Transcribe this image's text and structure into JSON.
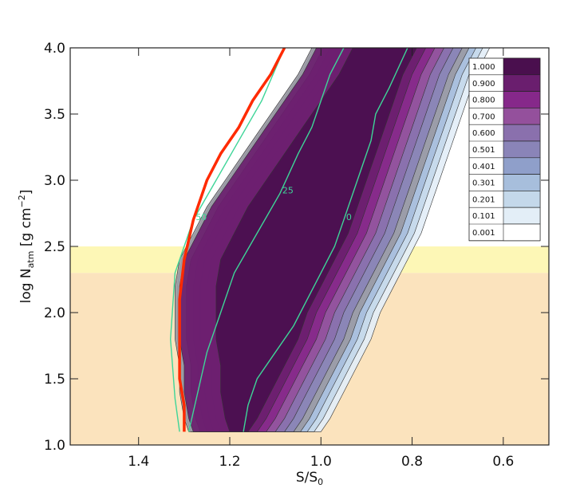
{
  "chart_data": {
    "type": "heatmap",
    "xlabel": "S/S",
    "xlabel_sub": "0",
    "ylabel_main": "log N",
    "ylabel_sub": "atm",
    "ylabel_rest": " [g cm",
    "ylabel_sup": "−2",
    "ylabel_end": "]",
    "xlim": [
      1.55,
      0.5
    ],
    "ylim": [
      1.0,
      4.0
    ],
    "x_ticks": [
      1.4,
      1.2,
      1.0,
      0.8,
      0.6
    ],
    "x_tick_labels": [
      "1.4",
      "1.2",
      "1.0",
      "0.8",
      "0.6"
    ],
    "y_ticks": [
      1.0,
      1.5,
      2.0,
      2.5,
      3.0,
      3.5,
      4.0
    ],
    "y_tick_labels": [
      "1.0",
      "1.5",
      "2.0",
      "2.5",
      "3.0",
      "3.5",
      "4.0"
    ],
    "legend": {
      "placement": "top-right",
      "levels": [
        "1.000",
        "0.900",
        "0.800",
        "0.700",
        "0.600",
        "0.501",
        "0.401",
        "0.301",
        "0.201",
        "0.101",
        "0.001"
      ],
      "colors": [
        "#4a0f4e",
        "#6a1e6e",
        "#86288a",
        "#94509c",
        "#8a70ad",
        "#8a84b8",
        "#8f9fca",
        "#a7bedc",
        "#c4d8ea",
        "#e3eef7",
        "#ffffff"
      ]
    },
    "band_colors": [
      "#4a0f4e",
      "#6a1e6e",
      "#86288a",
      "#94509c",
      "#8a70ad",
      "#8a84b8",
      "#9a9aa4",
      "#a7bedc",
      "#c4d8ea",
      "#e3eef7"
    ],
    "shaded_regions": [
      {
        "y_range": [
          1.0,
          2.3
        ],
        "color": "#fbe3bd"
      },
      {
        "y_range": [
          2.3,
          2.5
        ],
        "color": "#fdf7b6"
      }
    ],
    "region_y_bottom": 1.1,
    "region_y_top": 4.0,
    "left_edges": [
      [
        1.3,
        1.1
      ],
      [
        1.31,
        1.2
      ],
      [
        1.32,
        1.4
      ],
      [
        1.32,
        1.6
      ],
      [
        1.33,
        1.8
      ],
      [
        1.33,
        2.0
      ],
      [
        1.33,
        2.2
      ],
      [
        1.32,
        2.4
      ],
      [
        1.29,
        2.6
      ],
      [
        1.26,
        2.8
      ],
      [
        1.22,
        3.0
      ],
      [
        1.18,
        3.2
      ],
      [
        1.14,
        3.4
      ],
      [
        1.1,
        3.6
      ],
      [
        1.06,
        3.8
      ],
      [
        1.03,
        4.0
      ]
    ],
    "core_right_edge": [
      [
        1.16,
        1.1
      ],
      [
        1.14,
        1.2
      ],
      [
        1.11,
        1.4
      ],
      [
        1.08,
        1.6
      ],
      [
        1.05,
        1.8
      ],
      [
        1.03,
        2.0
      ],
      [
        1.0,
        2.2
      ],
      [
        0.97,
        2.4
      ],
      [
        0.94,
        2.6
      ],
      [
        0.92,
        2.8
      ],
      [
        0.9,
        3.0
      ],
      [
        0.88,
        3.2
      ],
      [
        0.86,
        3.4
      ],
      [
        0.84,
        3.6
      ],
      [
        0.82,
        3.8
      ],
      [
        0.79,
        4.0
      ]
    ],
    "right_edge_offsets": [
      0.02,
      0.04,
      0.06,
      0.08,
      0.1
    ],
    "left_offsets": [
      0.0,
      0.02,
      0.035,
      0.05,
      0.065,
      0.08
    ],
    "contours": [
      {
        "label": "0",
        "color": "#3ed598",
        "points": [
          [
            1.17,
            1.1
          ],
          [
            1.16,
            1.3
          ],
          [
            1.14,
            1.5
          ],
          [
            1.1,
            1.7
          ],
          [
            1.06,
            1.9
          ],
          [
            1.03,
            2.1
          ],
          [
            1.0,
            2.3
          ],
          [
            0.97,
            2.5
          ],
          [
            0.95,
            2.7
          ],
          [
            0.93,
            2.9
          ],
          [
            0.91,
            3.1
          ],
          [
            0.89,
            3.3
          ],
          [
            0.88,
            3.5
          ],
          [
            0.85,
            3.7
          ],
          [
            0.81,
            4.0
          ]
        ]
      },
      {
        "label": "25",
        "color": "#3ed598",
        "points": [
          [
            1.29,
            1.1
          ],
          [
            1.27,
            1.4
          ],
          [
            1.25,
            1.7
          ],
          [
            1.22,
            2.0
          ],
          [
            1.19,
            2.3
          ],
          [
            1.14,
            2.6
          ],
          [
            1.09,
            2.9
          ],
          [
            1.05,
            3.2
          ],
          [
            1.02,
            3.4
          ],
          [
            1.0,
            3.6
          ],
          [
            0.98,
            3.8
          ],
          [
            0.95,
            4.0
          ]
        ]
      },
      {
        "label": "50",
        "color": "#3ed598",
        "points": [
          [
            1.31,
            1.1
          ],
          [
            1.32,
            1.35
          ],
          [
            1.33,
            1.8
          ],
          [
            1.32,
            2.3
          ],
          [
            1.28,
            2.7
          ],
          [
            1.23,
            3.0
          ],
          [
            1.18,
            3.3
          ],
          [
            1.13,
            3.6
          ],
          [
            1.08,
            4.0
          ]
        ]
      }
    ],
    "red_line": {
      "color": "#ff2a00",
      "points": [
        [
          1.3,
          1.1
        ],
        [
          1.3,
          1.3
        ],
        [
          1.31,
          1.5
        ],
        [
          1.31,
          1.8
        ],
        [
          1.31,
          2.1
        ],
        [
          1.3,
          2.4
        ],
        [
          1.28,
          2.7
        ],
        [
          1.25,
          3.0
        ],
        [
          1.22,
          3.2
        ],
        [
          1.18,
          3.4
        ],
        [
          1.15,
          3.6
        ],
        [
          1.11,
          3.8
        ],
        [
          1.08,
          4.0
        ]
      ]
    }
  }
}
